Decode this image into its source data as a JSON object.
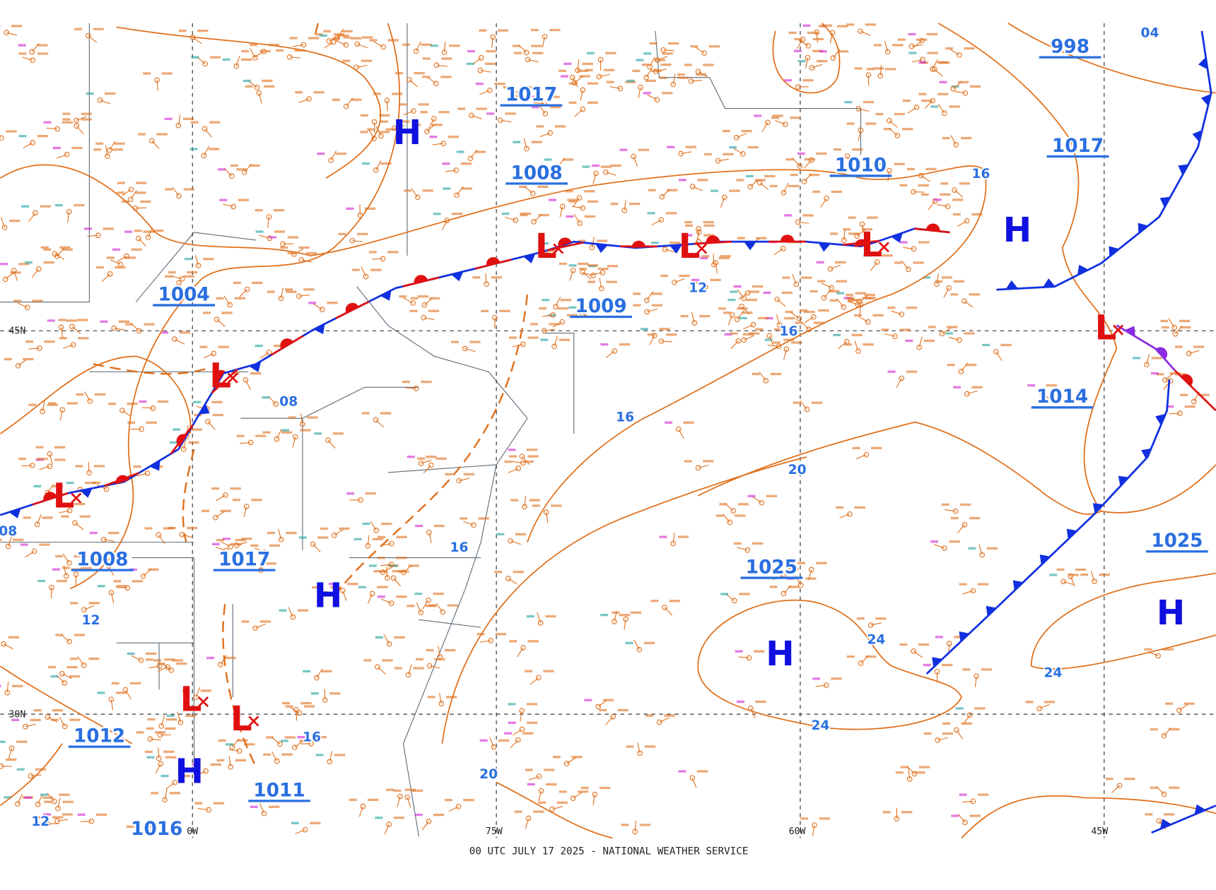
{
  "map": {
    "footer": "00 UTC JULY 17 2025 - NATIONAL WEATHER SERVICE",
    "grid_labels": [
      "45N",
      "30N",
      "0W",
      "75W",
      "60W",
      "45W"
    ],
    "isobar_labels": [
      "998",
      "1017",
      "1008",
      "1010",
      "1017",
      "1004",
      "1009",
      "1014",
      "1008",
      "1017",
      "1025",
      "1025",
      "1012",
      "1011",
      "1016"
    ],
    "contour_labels": [
      "04",
      "16",
      "12",
      "16",
      "08",
      "16",
      "20",
      "16",
      "12",
      "24",
      "24",
      "24",
      "16",
      "20",
      "12",
      "08"
    ],
    "highs": [
      "H",
      "H",
      "H",
      "H",
      "H",
      "H"
    ],
    "lows": [
      "L",
      "L",
      "L",
      "L",
      "L",
      "L",
      "L",
      "L"
    ]
  }
}
